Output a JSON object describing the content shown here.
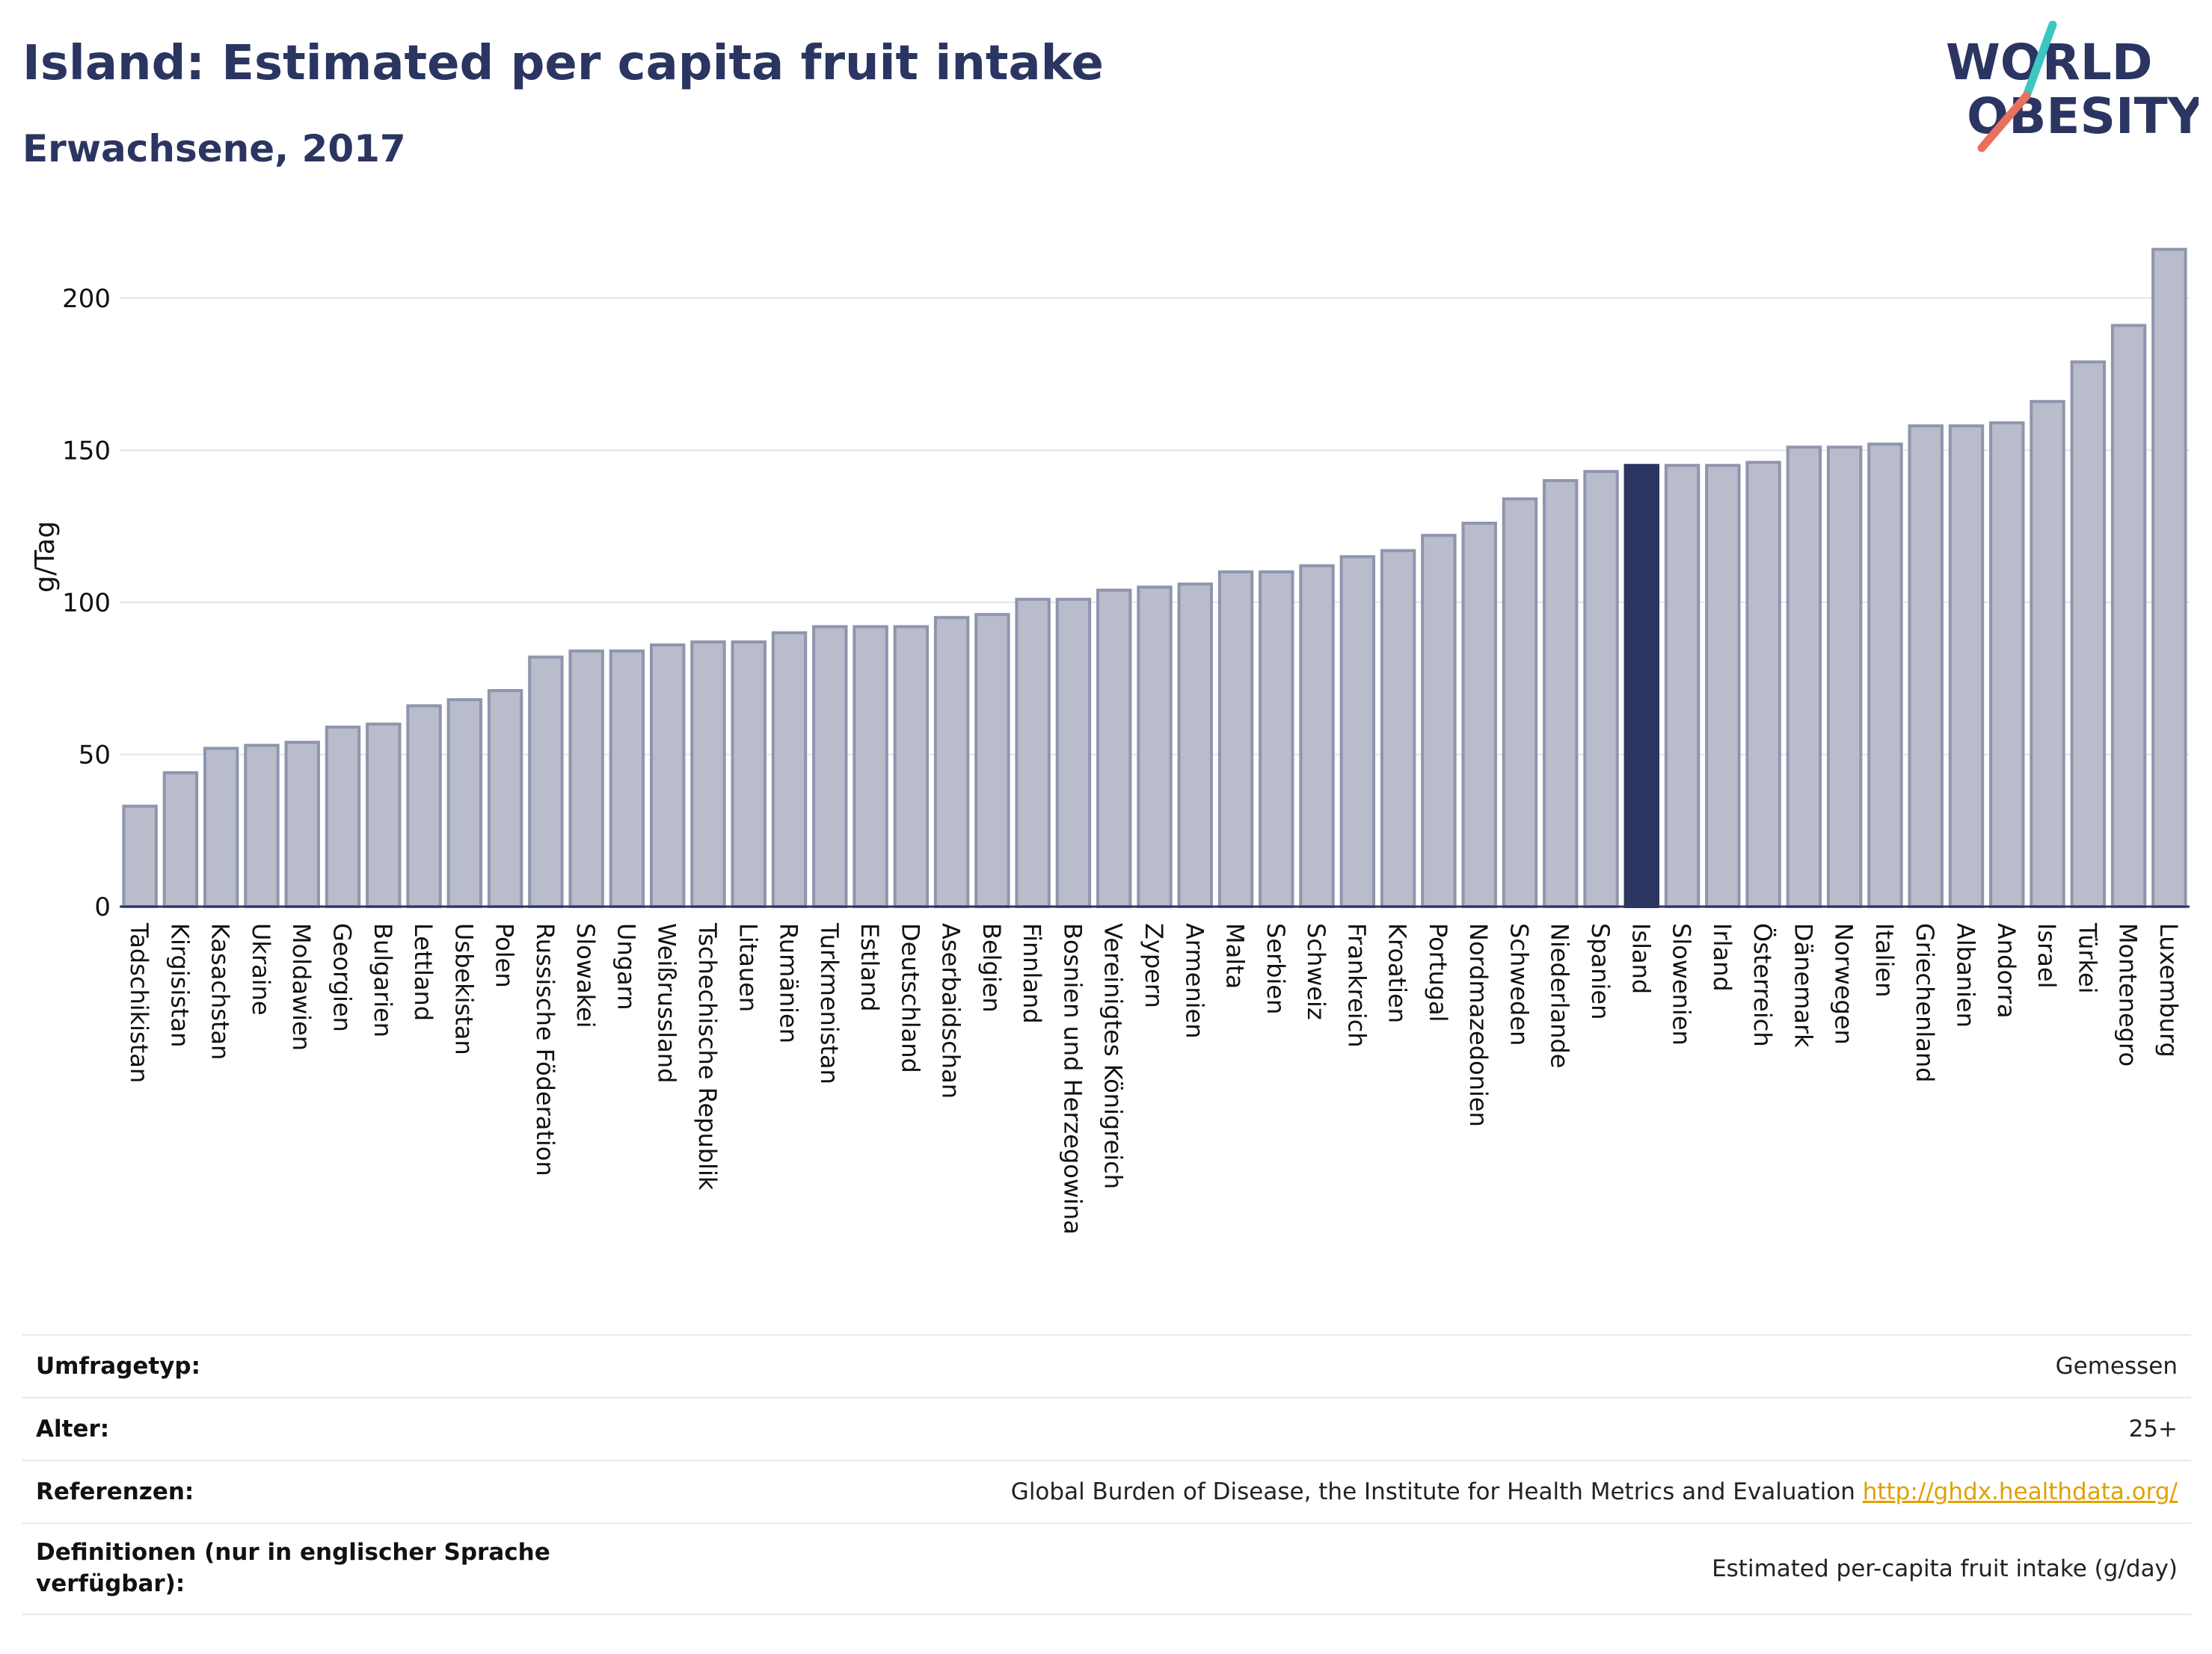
{
  "header": {
    "title": "Island: Estimated per capita fruit intake",
    "subtitle": "Erwachsene, 2017"
  },
  "logo": {
    "line1": "WORLD",
    "line2": "OBESITY"
  },
  "colors": {
    "highlight": "#2b3561",
    "bar": "#b8bccb",
    "bar_border": "#8f95ad",
    "text": "#2b3561",
    "link": "#e0a100"
  },
  "chart_data": {
    "type": "bar",
    "ylabel": "g/Tag",
    "ylim": [
      0,
      225
    ],
    "yticks": [
      0,
      50,
      100,
      150,
      200
    ],
    "grid": true,
    "highlight": "Island",
    "categories": [
      "Tadschikistan",
      "Kirgisistan",
      "Kasachstan",
      "Ukraine",
      "Moldawien",
      "Georgien",
      "Bulgarien",
      "Lettland",
      "Usbekistan",
      "Polen",
      "Russische Föderation",
      "Slowakei",
      "Ungarn",
      "Weißrussland",
      "Tschechische Republik",
      "Litauen",
      "Rumänien",
      "Turkmenistan",
      "Estland",
      "Deutschland",
      "Aserbaidschan",
      "Belgien",
      "Finnland",
      "Bosnien und Herzegowina",
      "Vereinigtes Königreich",
      "Zypern",
      "Armenien",
      "Malta",
      "Serbien",
      "Schweiz",
      "Frankreich",
      "Kroatien",
      "Portugal",
      "Nordmazedonien",
      "Schweden",
      "Niederlande",
      "Spanien",
      "Island",
      "Slowenien",
      "Irland",
      "Österreich",
      "Dänemark",
      "Norwegen",
      "Italien",
      "Griechenland",
      "Albanien",
      "Andorra",
      "Israel",
      "Türkei",
      "Montenegro",
      "Luxemburg"
    ],
    "values": [
      33,
      44,
      52,
      53,
      54,
      59,
      60,
      66,
      68,
      71,
      82,
      84,
      84,
      86,
      87,
      87,
      90,
      92,
      92,
      92,
      95,
      96,
      101,
      101,
      104,
      105,
      106,
      110,
      110,
      112,
      115,
      117,
      122,
      126,
      134,
      140,
      143,
      145,
      145,
      145,
      146,
      151,
      151,
      152,
      158,
      158,
      159,
      166,
      179,
      191,
      216
    ]
  },
  "info": [
    {
      "key": "Umfragetyp:",
      "value": "Gemessen"
    },
    {
      "key": "Alter:",
      "value": "25+"
    },
    {
      "key": "Referenzen:",
      "value": "Global Burden of Disease, the Institute for Health Metrics and Evaluation",
      "link": "http://ghdx.healthdata.org/"
    },
    {
      "key": "Definitionen (nur in englischer Sprache verfügbar):",
      "value": "Estimated per-capita fruit intake (g/day)"
    }
  ]
}
